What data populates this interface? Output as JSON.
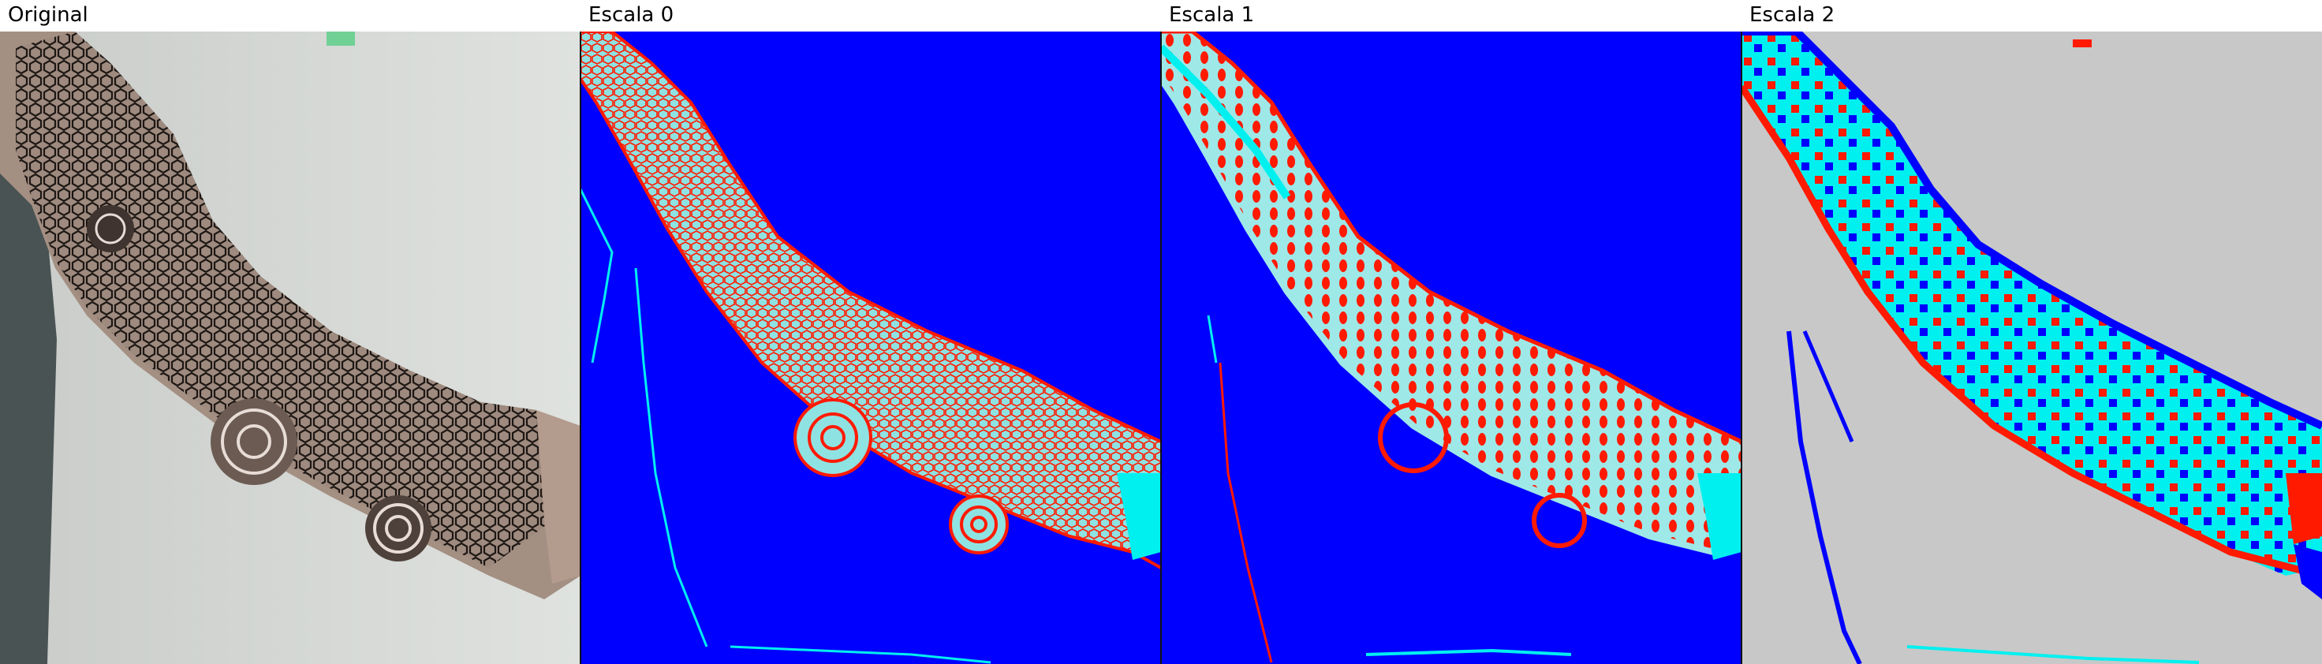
{
  "panels": [
    {
      "id": "original",
      "label": "Original",
      "image": "original tattooed arm photograph"
    },
    {
      "id": "escala-0",
      "label": "Escala 0",
      "image": "scale 0 segmentation map"
    },
    {
      "id": "escala-1",
      "label": "Escala 1",
      "image": "scale 1 segmentation map"
    },
    {
      "id": "escala-2",
      "label": "Escala 2",
      "image": "scale 2 segmentation map"
    }
  ],
  "colors": {
    "background_blue": "#0000ff",
    "cyan": "#00f0f0",
    "red": "#ff1a00",
    "light_cyan": "#9ee8e8",
    "gray": "#c8c8c8",
    "wall": "#d6d9d6",
    "skin": "#a48f83",
    "shirt": "#4a5354"
  }
}
